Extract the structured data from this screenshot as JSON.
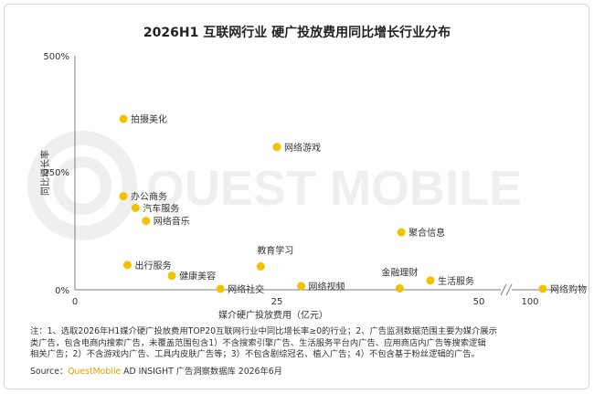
{
  "title": "2026H1 互联网行业 硬广投放费用同比增长行业分布",
  "notes": [
    "注：1、选取2026年H1媒介硬广投放费用TOP20互联网行业中同比增长率≥0的行业；2、广告监测数据范围主要为媒介展示",
    "类广告，包含电商内搜索广告，未覆盖范围包含1）不含搜索引擎广告、生活服务平台内广告、应用商店内广告等搜索逻辑",
    "相关广告；2）不含游戏内广告、工具内皮肤广告等；3）不包含剧综冠名、植入广告；4）不包含基于粉丝逻辑的广告。"
  ],
  "source": {
    "prefix": "Source：",
    "brand": "QuestMobile",
    "suffix": " AD INSIGHT 广告洞察数据库 2026年6月"
  },
  "watermark": "QUEST MOBILE",
  "colors": {
    "point": "#f2c200",
    "axis": "#7f7f7f",
    "brand": "#d9a400"
  },
  "chart_data": {
    "type": "scatter",
    "title": "2026H1 互联网行业 硬广投放费用同比增长行业分布",
    "xlabel": "媒介硬广投放费用（亿元）",
    "ylabel": "同比增长率",
    "x_ticks": [
      "0",
      "25",
      "50",
      "100"
    ],
    "y_ticks": [
      "0%",
      "250%",
      "500%"
    ],
    "xlim": [
      0,
      100
    ],
    "ylim": [
      0,
      500
    ],
    "x_axis_break": true,
    "grid": false,
    "points": [
      {
        "label": "拍摄美化",
        "x": 6,
        "y": 365
      },
      {
        "label": "网络游戏",
        "x": 25,
        "y": 305
      },
      {
        "label": "办公商务",
        "x": 6,
        "y": 200
      },
      {
        "label": "汽车服务",
        "x": 7.5,
        "y": 175
      },
      {
        "label": "网络音乐",
        "x": 8.8,
        "y": 147
      },
      {
        "label": "聚合信息",
        "x": 40.4,
        "y": 123
      },
      {
        "label": "出行服务",
        "x": 6.5,
        "y": 53
      },
      {
        "label": "教育学习",
        "x": 23,
        "y": 50
      },
      {
        "label": "健康美容",
        "x": 12,
        "y": 30
      },
      {
        "label": "金融理财",
        "x": 40.2,
        "y": 3
      },
      {
        "label": "生活服务",
        "x": 44,
        "y": 20
      },
      {
        "label": "网络社交",
        "x": 18,
        "y": 2
      },
      {
        "label": "网络视频",
        "x": 28,
        "y": 8
      },
      {
        "label": "网络购物",
        "x": 100,
        "y": 2
      }
    ]
  }
}
